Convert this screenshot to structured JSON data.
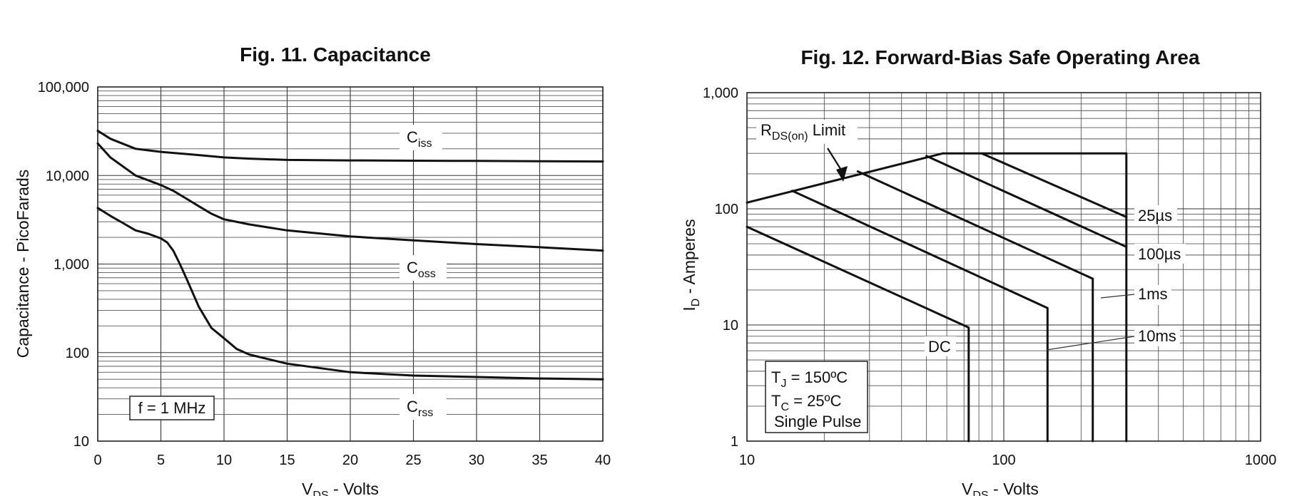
{
  "chart_data": [
    {
      "type": "line",
      "title": "Fig. 11. Capacitance",
      "xlabel": {
        "main": "V",
        "sub": "DS",
        "rest": " - Volts"
      },
      "ylabel": "Capacitance - PicoFarads",
      "yscale": "log",
      "xlim": [
        0,
        40
      ],
      "ylim": [
        10,
        100000
      ],
      "xticks": [
        "0",
        "5",
        "10",
        "15",
        "20",
        "25",
        "30",
        "35",
        "40"
      ],
      "yticks": [
        "10",
        "100",
        "1,000",
        "10,000",
        "100,000"
      ],
      "grid": true,
      "annotation": "f = 1 MHz",
      "series": [
        {
          "name": "Ciss",
          "label_main": "C",
          "label_sub": "iss",
          "x": [
            0,
            1,
            3,
            5,
            8,
            10,
            12,
            15,
            20,
            25,
            30,
            35,
            40
          ],
          "y": [
            32000,
            26000,
            20000,
            18500,
            17000,
            16000,
            15500,
            15000,
            14800,
            14700,
            14600,
            14500,
            14400
          ]
        },
        {
          "name": "Coss",
          "label_main": "C",
          "label_sub": "oss",
          "x": [
            0,
            1,
            3,
            5,
            6,
            7,
            8,
            9,
            10,
            12,
            15,
            20,
            25,
            30,
            35,
            40
          ],
          "y": [
            23000,
            16000,
            10000,
            7800,
            6700,
            5500,
            4500,
            3700,
            3200,
            2800,
            2400,
            2050,
            1850,
            1680,
            1550,
            1420
          ]
        },
        {
          "name": "Crss",
          "label_main": "C",
          "label_sub": "rss",
          "x": [
            0,
            1,
            2,
            3,
            4,
            5,
            5.5,
            6,
            6.5,
            7,
            7.5,
            8,
            9,
            10,
            11,
            12,
            15,
            20,
            25,
            30,
            35,
            40
          ],
          "y": [
            4300,
            3500,
            2900,
            2400,
            2200,
            1950,
            1750,
            1400,
            1000,
            700,
            480,
            330,
            190,
            145,
            110,
            95,
            75,
            60,
            55,
            53,
            51,
            50
          ]
        }
      ]
    },
    {
      "type": "line",
      "title": "Fig. 12. Forward-Bias Safe Operating Area",
      "xlabel": {
        "main": "V",
        "sub": "DS",
        "rest": " - Volts"
      },
      "ylabel": {
        "main": "I",
        "sub": "D",
        "rest": " - Amperes"
      },
      "xscale": "log",
      "yscale": "log",
      "xlim": [
        10,
        1000
      ],
      "ylim": [
        1,
        1000
      ],
      "xticks": [
        "10",
        "100",
        "1000"
      ],
      "yticks": [
        "1",
        "10",
        "100",
        "1,000"
      ],
      "grid": true,
      "annotations": [
        {
          "main": "R",
          "sub": "DS(on)",
          "rest": " Limit"
        },
        {
          "main": "T",
          "sub": "J",
          "rest": " = 150ºC"
        },
        {
          "main": "T",
          "sub": "C",
          "rest": " = 25ºC"
        },
        {
          "main": "",
          "sub": "",
          "rest": "Single Pulse"
        }
      ],
      "series": [
        {
          "name": "RDS(on) Limit",
          "x": [
            10,
            58
          ],
          "y": [
            113,
            300
          ]
        },
        {
          "name": "25µs",
          "x": [
            58,
            300,
            300
          ],
          "y": [
            300,
            300,
            1
          ]
        },
        {
          "name": "25µs",
          "x": [
            82,
            300
          ],
          "y": [
            300,
            85
          ]
        },
        {
          "name": "100µs",
          "x": [
            50,
            300
          ],
          "y": [
            285,
            47
          ]
        },
        {
          "name": "1ms",
          "x": [
            27,
            222,
            222
          ],
          "y": [
            210,
            25,
            1
          ]
        },
        {
          "name": "10ms",
          "x": [
            15,
            148,
            148
          ],
          "y": [
            143,
            14,
            1
          ]
        },
        {
          "name": "DC",
          "x": [
            10,
            73,
            73
          ],
          "y": [
            70,
            9.5,
            1
          ]
        }
      ],
      "curve_labels": [
        "25µs",
        "100µs",
        "1ms",
        "10ms",
        "DC"
      ]
    }
  ]
}
